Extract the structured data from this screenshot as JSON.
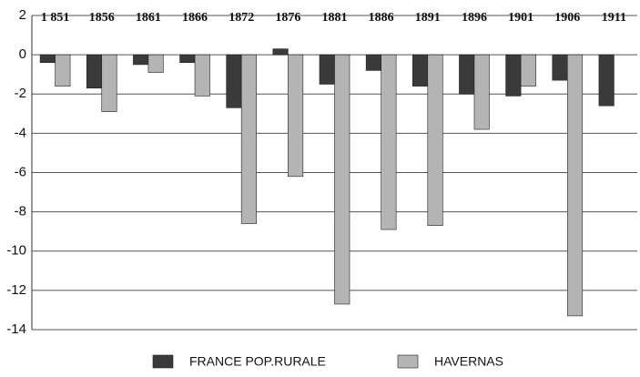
{
  "chart_data": {
    "type": "bar",
    "categories": [
      "1 851",
      "1856",
      "1861",
      "1866",
      "1872",
      "1876",
      "1881",
      "1886",
      "1891",
      "1896",
      "1901",
      "1906",
      "1911"
    ],
    "series": [
      {
        "name": "FRANCE POP.RURALE",
        "color": "#3a3a3a",
        "values": [
          -0.4,
          -1.7,
          -0.5,
          -0.4,
          -2.7,
          0.3,
          -1.5,
          -0.8,
          -1.6,
          -2.0,
          -2.1,
          -1.3,
          -2.6
        ]
      },
      {
        "name": "HAVERNAS",
        "color": "#b4b4b4",
        "values": [
          -1.6,
          -2.9,
          -0.9,
          -2.1,
          -8.6,
          -6.2,
          -12.7,
          -8.9,
          -8.7,
          -3.8,
          -1.6,
          -13.3,
          null
        ]
      }
    ],
    "ylim": [
      -14,
      2
    ],
    "yticks": [
      2,
      0,
      -2,
      -4,
      -6,
      -8,
      -10,
      -12,
      -14
    ],
    "grid": true,
    "legend": "bottom"
  }
}
